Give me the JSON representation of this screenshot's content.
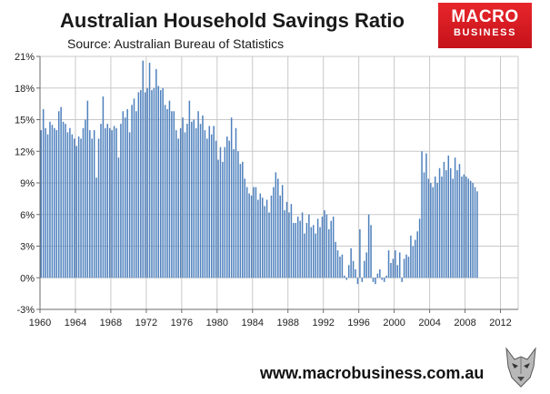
{
  "header": {
    "title": "Australian Household Savings Ratio",
    "subtitle": "Source: Australian Bureau of Statistics"
  },
  "logo": {
    "line1": "MACRO",
    "line2": "BUSINESS",
    "bg_color": "#d7191f"
  },
  "footer": {
    "url": "www.macrobusiness.com.au"
  },
  "mascot": {
    "icon": "wolf-head-icon"
  },
  "chart_data": {
    "type": "bar",
    "title": "Australian Household Savings Ratio",
    "subtitle": "Source: Australian Bureau of Statistics",
    "xlabel": "",
    "ylabel": "",
    "frequency": "quarterly",
    "bar_color": "#4f81bd",
    "grid": true,
    "grid_color": "#c8c8c8",
    "xlim": [
      1960,
      2014
    ],
    "ylim": [
      -3,
      21
    ],
    "y_ticks": [
      -3,
      0,
      3,
      6,
      9,
      12,
      15,
      18,
      21
    ],
    "y_tick_labels": [
      "-3%",
      "0%",
      "3%",
      "6%",
      "9%",
      "12%",
      "15%",
      "18%",
      "21%"
    ],
    "x_ticks": [
      1960,
      1964,
      1968,
      1972,
      1976,
      1980,
      1984,
      1988,
      1992,
      1996,
      2000,
      2004,
      2008,
      2012
    ],
    "x_tick_labels": [
      "1960",
      "1964",
      "1968",
      "1972",
      "1976",
      "1980",
      "1984",
      "1988",
      "1992",
      "1996",
      "2000",
      "2004",
      "2008",
      "2012"
    ],
    "start": "1960 Q1",
    "values": [
      14.0,
      16.0,
      14.2,
      13.6,
      14.8,
      14.5,
      14.2,
      14.0,
      15.8,
      16.2,
      14.8,
      14.6,
      13.8,
      14.2,
      13.6,
      13.2,
      12.5,
      13.4,
      13.2,
      14.2,
      15.0,
      16.8,
      14.0,
      13.2,
      14.0,
      9.5,
      13.2,
      14.6,
      17.2,
      14.2,
      14.6,
      14.2,
      14.0,
      14.4,
      14.2,
      11.4,
      14.6,
      15.8,
      15.2,
      16.0,
      13.8,
      16.4,
      17.0,
      15.8,
      17.6,
      17.8,
      20.6,
      17.6,
      18.0,
      20.4,
      17.8,
      18.0,
      19.8,
      18.2,
      17.8,
      18.0,
      16.4,
      16.0,
      16.8,
      15.8,
      15.8,
      14.0,
      13.2,
      14.2,
      15.2,
      13.8,
      14.6,
      16.8,
      14.8,
      15.0,
      14.2,
      15.8,
      14.6,
      15.4,
      14.0,
      13.2,
      14.4,
      13.6,
      14.4,
      13.0,
      11.2,
      12.4,
      11.0,
      12.4,
      13.4,
      13.0,
      15.2,
      12.2,
      14.2,
      12.0,
      10.8,
      11.0,
      9.4,
      8.6,
      8.0,
      7.8,
      8.6,
      8.6,
      7.4,
      8.0,
      7.6,
      6.8,
      7.4,
      6.2,
      7.8,
      8.6,
      10.0,
      9.4,
      7.8,
      8.8,
      6.4,
      7.2,
      6.2,
      7.0,
      5.2,
      5.2,
      5.8,
      5.4,
      6.2,
      4.2,
      5.2,
      6.0,
      4.8,
      5.0,
      4.2,
      5.6,
      4.8,
      5.8,
      6.4,
      6.0,
      4.6,
      5.4,
      5.8,
      3.4,
      2.6,
      2.0,
      2.2,
      0.2,
      -0.2,
      1.2,
      2.8,
      1.6,
      0.8,
      -0.6,
      4.6,
      -0.4,
      1.6,
      2.4,
      6.0,
      5.0,
      -0.4,
      -0.6,
      0.4,
      0.8,
      -0.2,
      -0.4,
      0.2,
      2.6,
      1.4,
      1.8,
      2.6,
      1.2,
      2.4,
      -0.4,
      1.8,
      2.2,
      2.0,
      4.0,
      3.0,
      3.6,
      4.4,
      5.6,
      12.0,
      10.0,
      11.8,
      9.4,
      9.0,
      8.6,
      9.6,
      9.0,
      10.4,
      9.6,
      11.0,
      10.2,
      11.6,
      10.4,
      9.4,
      11.4,
      10.2,
      10.8,
      9.6,
      9.8,
      9.6,
      9.4,
      9.2,
      9.0,
      8.6,
      8.2
    ]
  }
}
